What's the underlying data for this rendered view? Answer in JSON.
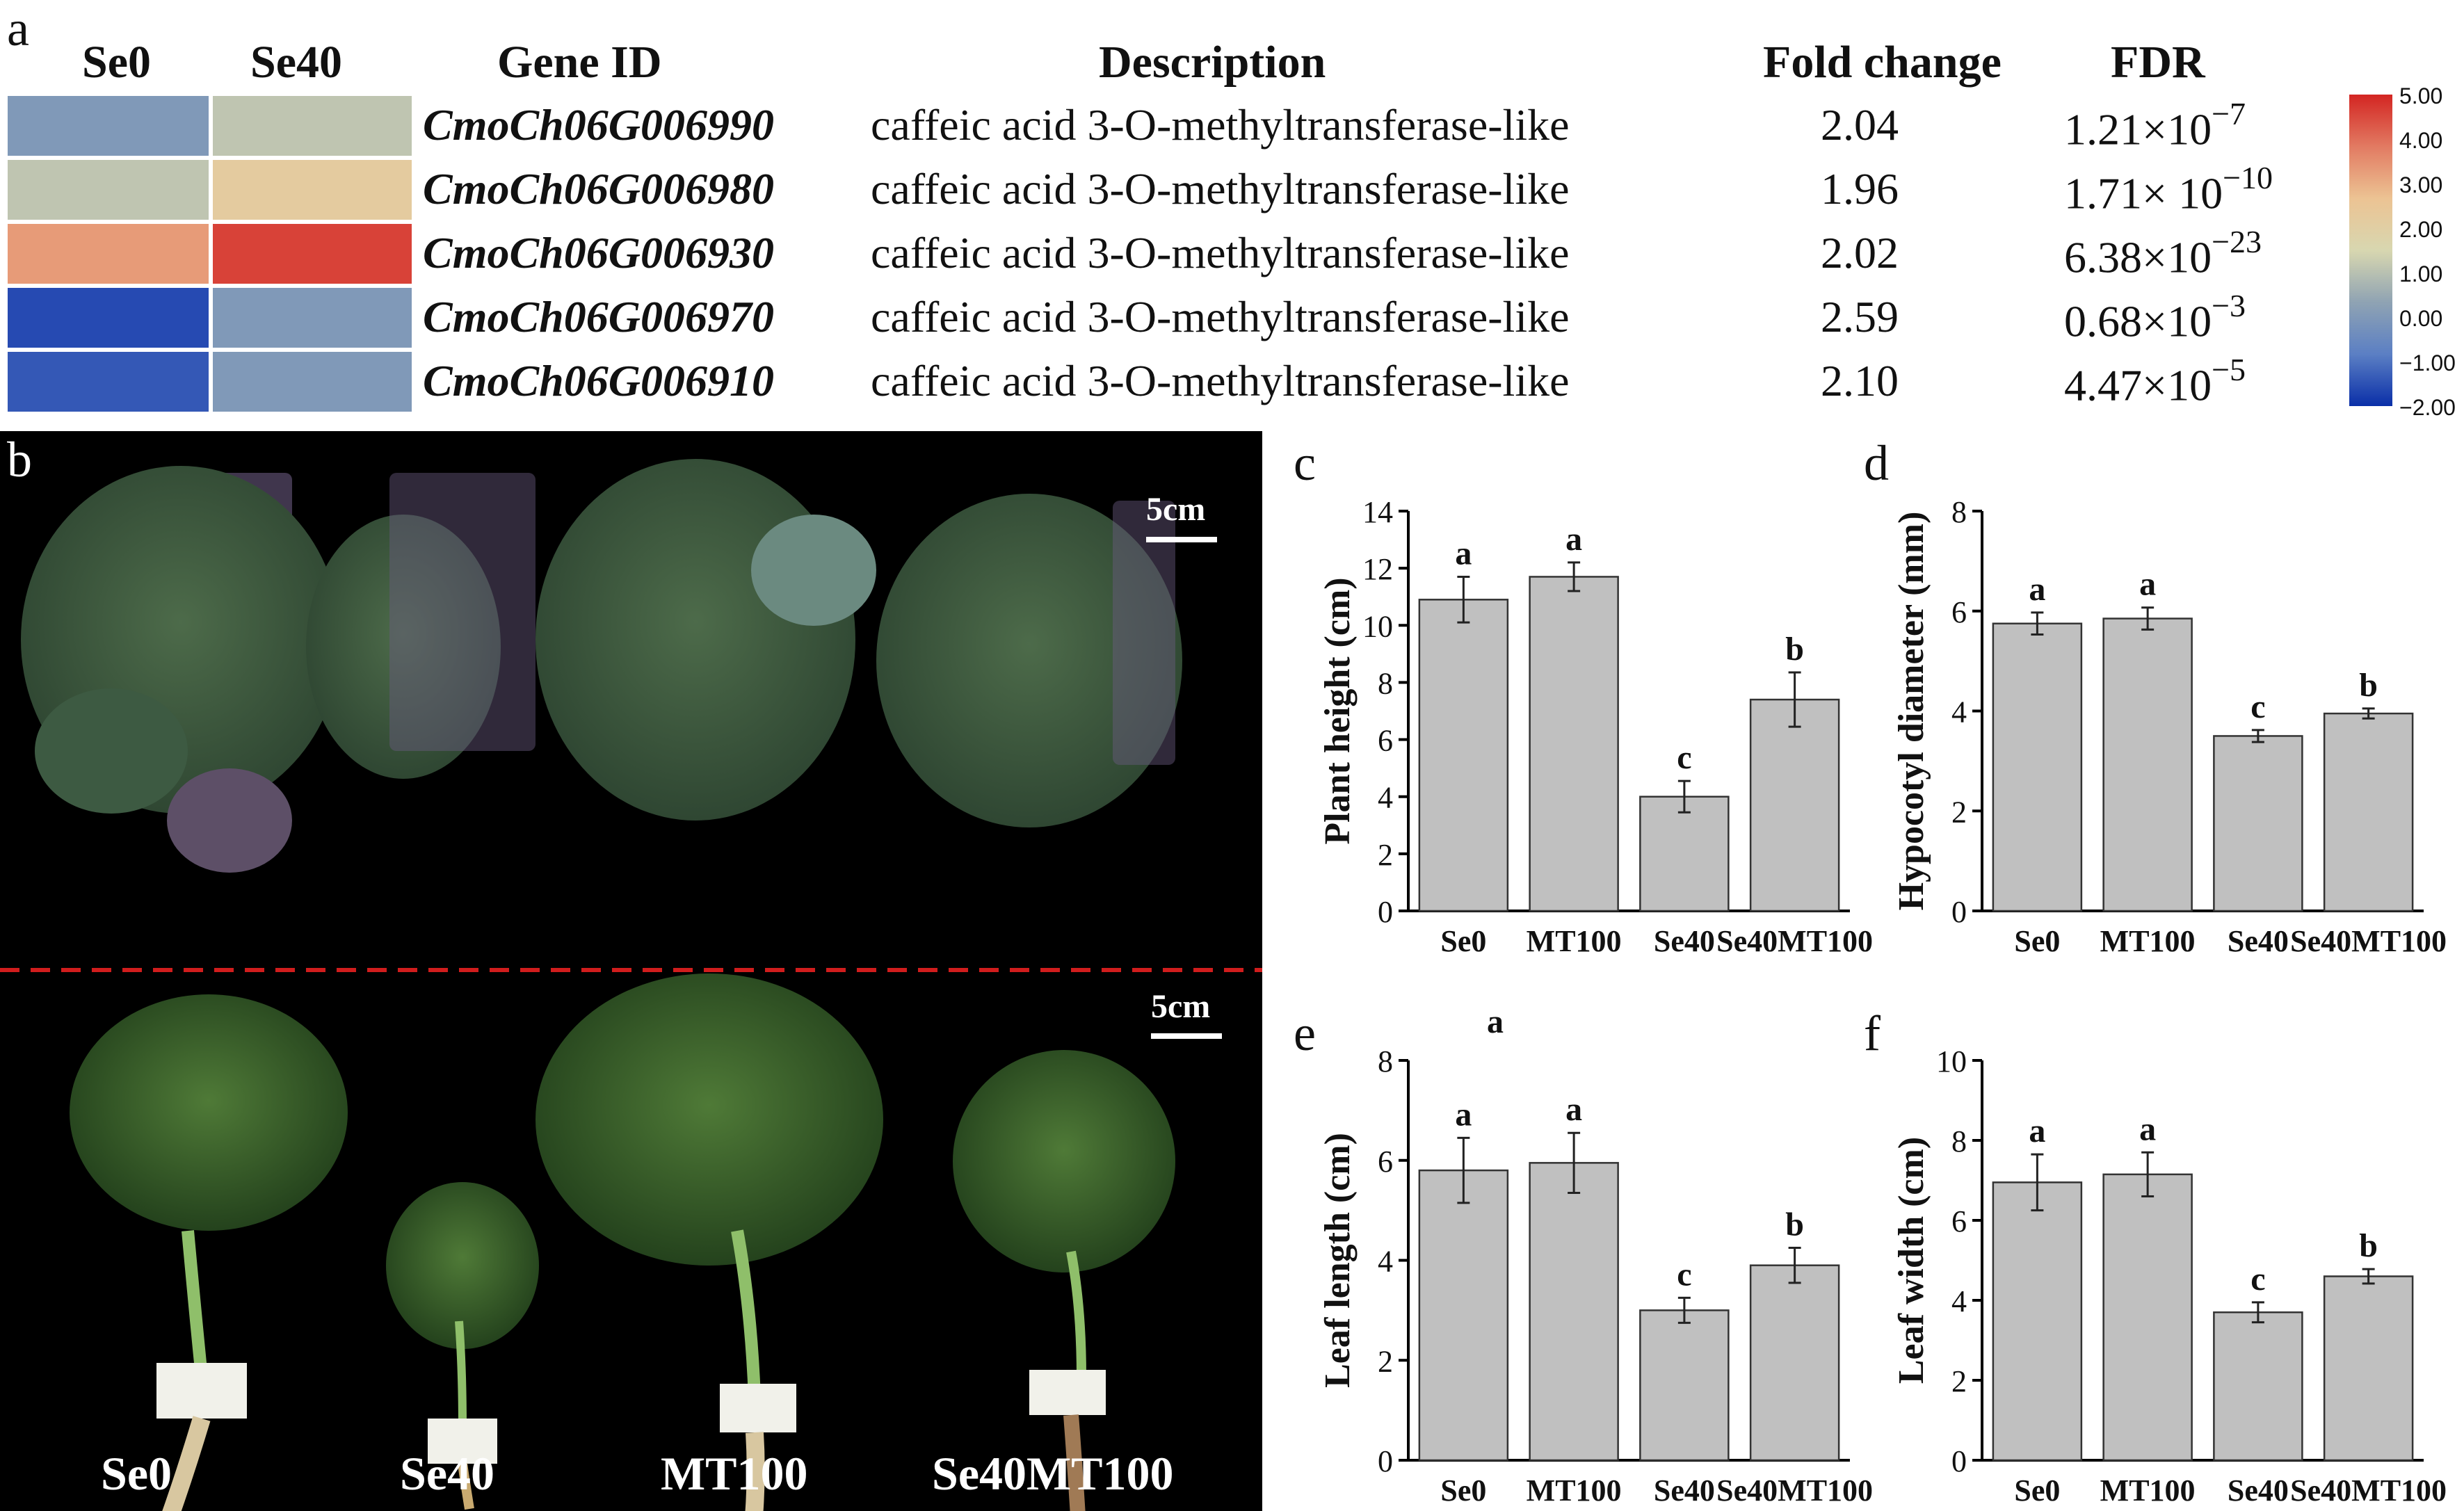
{
  "panel_a": {
    "letter": "a",
    "headers": {
      "col1": "Se0",
      "col2": "Se40",
      "gene": "Gene ID",
      "desc": "Description",
      "fc": "Fold change",
      "fdr": "FDR"
    },
    "rows": [
      {
        "gene": "CmoCh06G006990",
        "desc": "caffeic acid 3-O-methyltransferase-like",
        "fc": "2.04",
        "fdr_base": "1.21×10",
        "fdr_exp": "−7",
        "se0": 0.0,
        "se40": 1.1
      },
      {
        "gene": "CmoCh06G006980",
        "desc": "caffeic acid 3-O-methyltransferase-like",
        "fc": "1.96",
        "fdr_base": "1.71× 10",
        "fdr_exp": "−10",
        "se0": 1.1,
        "se40": 2.2
      },
      {
        "gene": "CmoCh06G006930",
        "desc": "caffeic acid 3-O-methyltransferase-like",
        "fc": "2.02",
        "fdr_base": "6.38×10",
        "fdr_exp": "−23",
        "se0": 3.3,
        "se40": 4.6
      },
      {
        "gene": "CmoCh06G006970",
        "desc": "caffeic acid 3-O-methyltransferase-like",
        "fc": "2.59",
        "fdr_base": "0.68×10",
        "fdr_exp": "−3",
        "se0": -1.6,
        "se40": 0.0
      },
      {
        "gene": "CmoCh06G006910",
        "desc": "caffeic acid 3-O-methyltransferase-like",
        "fc": "2.10",
        "fdr_base": "4.47×10",
        "fdr_exp": "−5",
        "se0": -1.4,
        "se40": 0.0
      }
    ],
    "colorbar": {
      "ticks": [
        "5.00",
        "4.00",
        "3.00",
        "2.00",
        "1.00",
        "0.00",
        "−1.00",
        "−2.00"
      ],
      "min": -2,
      "max": 5,
      "stops": [
        "#0a2fa8",
        "#5b7fc4",
        "#8fa3b3",
        "#d8d7b0",
        "#ecc393",
        "#e27a62",
        "#d32522"
      ]
    }
  },
  "panel_b": {
    "letter": "b",
    "scale_top": "5cm",
    "scale_bottom": "5cm",
    "labels": [
      "Se0",
      "Se40",
      "MT100",
      "Se40MT100"
    ]
  },
  "chart_data": [
    {
      "letter": "c",
      "type": "bar",
      "categories": [
        "Se0",
        "MT100",
        "Se40",
        "Se40MT100"
      ],
      "values": [
        10.9,
        11.7,
        4.0,
        7.4
      ],
      "errors": [
        0.8,
        0.5,
        0.55,
        0.95
      ],
      "sig": [
        "a",
        "a",
        "c",
        "b"
      ],
      "ylabel": "Plant height (cm)",
      "ylim": [
        0,
        14
      ],
      "ticks": [
        0,
        2,
        4,
        6,
        8,
        10,
        12,
        14
      ]
    },
    {
      "letter": "d",
      "type": "bar",
      "categories": [
        "Se0",
        "MT100",
        "Se40",
        "Se40MT100"
      ],
      "values": [
        5.75,
        5.85,
        3.5,
        3.95
      ],
      "errors": [
        0.22,
        0.22,
        0.12,
        0.1
      ],
      "sig": [
        "a",
        "a",
        "c",
        "b"
      ],
      "ylabel": "Hypocotyl diameter (mm)",
      "ylim": [
        0,
        8
      ],
      "ticks": [
        0,
        2,
        4,
        6,
        8
      ]
    },
    {
      "letter": "e",
      "type": "bar",
      "categories": [
        "Se0",
        "MT100",
        "Se40",
        "Se40MT100"
      ],
      "values": [
        5.8,
        5.95,
        3.0,
        3.9
      ],
      "errors": [
        0.65,
        0.6,
        0.25,
        0.35
      ],
      "sig": [
        "a",
        "a",
        "c",
        "b"
      ],
      "extra_label": "a",
      "ylabel": "Leaf length (cm)",
      "ylim": [
        0,
        8
      ],
      "ticks": [
        0,
        2,
        4,
        6,
        8
      ]
    },
    {
      "letter": "f",
      "type": "bar",
      "categories": [
        "Se0",
        "MT100",
        "Se40",
        "Se40MT100"
      ],
      "values": [
        6.95,
        7.15,
        3.7,
        4.6
      ],
      "errors": [
        0.7,
        0.55,
        0.25,
        0.18
      ],
      "sig": [
        "a",
        "a",
        "c",
        "b"
      ],
      "ylabel": "Leaf width (cm)",
      "ylim": [
        0,
        10
      ],
      "ticks": [
        0,
        2,
        4,
        6,
        8,
        10
      ]
    }
  ]
}
